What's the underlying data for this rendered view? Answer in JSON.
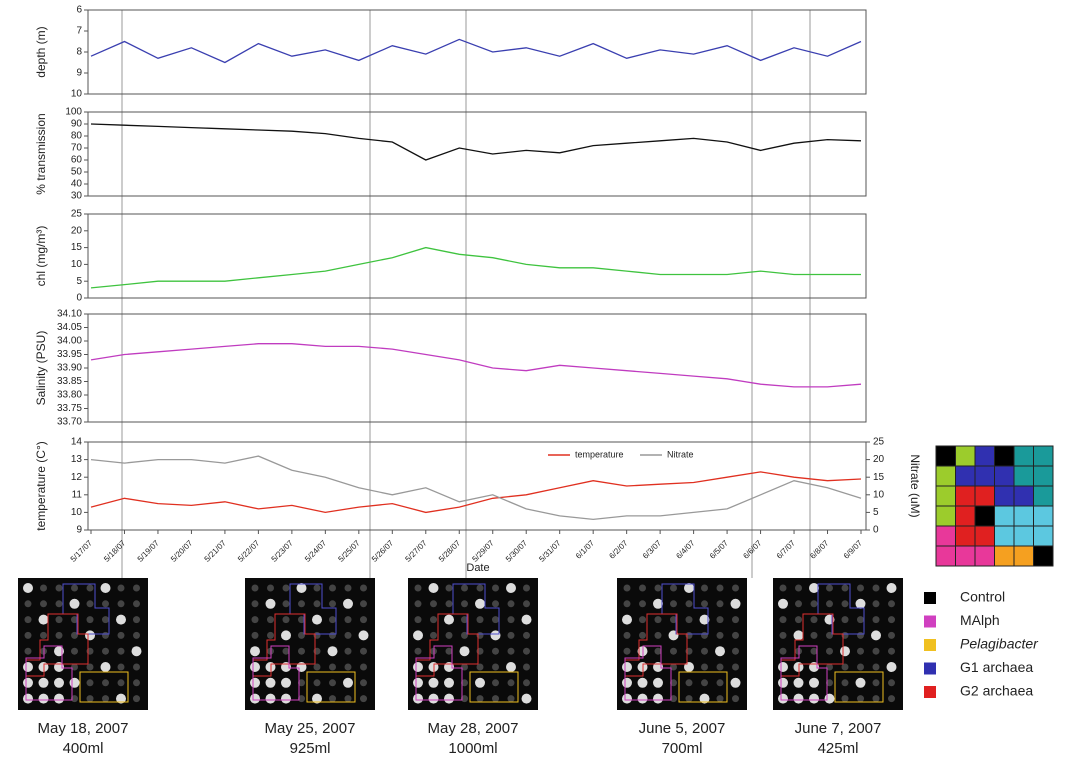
{
  "chart_data": [
    {
      "type": "line",
      "ylabel": "depth (m)",
      "ylim": [
        10,
        6
      ],
      "yticks": [
        6,
        7,
        8,
        9,
        10
      ],
      "series": [
        {
          "color": "#3a3fb0",
          "values": [
            8.2,
            7.5,
            8.3,
            7.8,
            8.5,
            7.6,
            8.2,
            7.9,
            8.4,
            7.7,
            8.1,
            7.4,
            8.0,
            7.8,
            8.2,
            7.6,
            8.3,
            7.9,
            8.1,
            7.7,
            8.4,
            7.8,
            8.2,
            7.5
          ]
        }
      ]
    },
    {
      "type": "line",
      "ylabel": "% transmission",
      "ylim": [
        30,
        100
      ],
      "yticks": [
        30,
        40,
        50,
        60,
        70,
        80,
        90,
        100
      ],
      "series": [
        {
          "color": "#111111",
          "values": [
            90,
            89,
            88,
            87,
            86,
            85,
            84,
            82,
            78,
            75,
            60,
            70,
            65,
            68,
            66,
            72,
            74,
            76,
            78,
            75,
            68,
            74,
            77,
            76
          ]
        }
      ]
    },
    {
      "type": "line",
      "ylabel": "chl (mg/m³)",
      "ylim": [
        0,
        25
      ],
      "yticks": [
        0,
        5,
        10,
        15,
        20,
        25
      ],
      "series": [
        {
          "color": "#3fc33f",
          "values": [
            3,
            4,
            5,
            5,
            5,
            6,
            7,
            8,
            10,
            12,
            15,
            13,
            12,
            10,
            9,
            9,
            8,
            7,
            7,
            7,
            8,
            7,
            7,
            7
          ]
        }
      ]
    },
    {
      "type": "line",
      "ylabel": "Salinity (PSU)",
      "ylim": [
        33.7,
        34.1
      ],
      "yticks": [
        {
          "value": 33.7,
          "label": "33.70"
        },
        33.75,
        {
          "value": 33.8,
          "label": "33.80"
        },
        33.85,
        {
          "value": 33.9,
          "label": "33.90"
        },
        33.95,
        {
          "value": 34,
          "label": "34.00"
        },
        34.05,
        {
          "value": 34.1,
          "label": "34.10"
        }
      ],
      "series": [
        {
          "color": "#c03cc0",
          "values": [
            33.93,
            33.95,
            33.96,
            33.97,
            33.98,
            33.99,
            33.99,
            33.98,
            33.98,
            33.97,
            33.95,
            33.93,
            33.9,
            33.89,
            33.91,
            33.9,
            33.89,
            33.88,
            33.87,
            33.86,
            33.84,
            33.83,
            33.83,
            33.84
          ]
        }
      ]
    },
    {
      "type": "line",
      "ylabel": "temperature (C°)",
      "y2label": "Nitrate (uM)",
      "xlabel": "Date",
      "ylim": [
        9,
        14
      ],
      "yticks": [
        9,
        10,
        11,
        12,
        13,
        14
      ],
      "y2lim": [
        0,
        25
      ],
      "y2ticks": [
        0,
        5,
        10,
        15,
        20,
        25
      ],
      "categories": [
        "5/17/07",
        "5/18/07",
        "5/19/07",
        "5/20/07",
        "5/21/07",
        "5/22/07",
        "5/23/07",
        "5/24/07",
        "5/25/07",
        "5/26/07",
        "5/27/07",
        "5/28/07",
        "5/29/07",
        "5/30/07",
        "5/31/07",
        "6/1/07",
        "6/2/07",
        "6/3/07",
        "6/4/07",
        "6/5/07",
        "6/6/07",
        "6/7/07",
        "6/8/07",
        "6/9/07"
      ],
      "series": [
        {
          "name": "temperature",
          "color": "#e03020",
          "values": [
            10.3,
            10.8,
            10.5,
            10.4,
            10.6,
            10.2,
            10.4,
            10.0,
            10.3,
            10.5,
            10.0,
            10.3,
            10.8,
            11.0,
            11.4,
            11.8,
            11.5,
            11.6,
            11.7,
            12.0,
            12.3,
            12.0,
            11.8,
            11.9
          ]
        },
        {
          "name": "Nitrate",
          "color": "#999999",
          "axis": "y2",
          "values": [
            20,
            19,
            20,
            20,
            19,
            21,
            17,
            15,
            12,
            10,
            12,
            8,
            10,
            6,
            4,
            3,
            4,
            4,
            5,
            6,
            10,
            14,
            12,
            9
          ]
        }
      ]
    }
  ],
  "array_images": [
    {
      "date": "May 18, 2007",
      "volume": "400ml"
    },
    {
      "date": "May 25, 2007",
      "volume": "925ml"
    },
    {
      "date": "May 28, 2007",
      "volume": "1000ml"
    },
    {
      "date": "June 5, 2007",
      "volume": "700ml"
    },
    {
      "date": "June 7, 2007",
      "volume": "425ml"
    }
  ],
  "array_legend": [
    {
      "label": "Control",
      "color": "#000000"
    },
    {
      "label": "MAlph",
      "color": "#d040c0"
    },
    {
      "label": "Pelagibacter",
      "color": "#f0c020"
    },
    {
      "label": "G1 archaea",
      "color": "#3030b0"
    },
    {
      "label": "G2 archaea",
      "color": "#e02020"
    }
  ]
}
